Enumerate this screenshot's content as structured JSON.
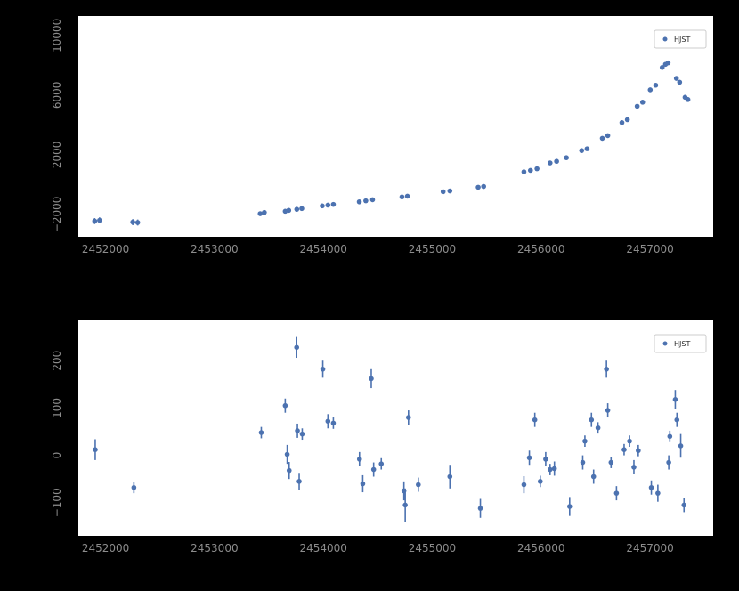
{
  "style": {
    "background": "#000000",
    "plot_bg": "#ffffff",
    "tick_color": "#8c8c8c",
    "point_color": "#4c72b0",
    "legend_border": "#cccccc",
    "legend_text_color": "#262626",
    "legend_fill": "#ffffff"
  },
  "chart_data": [
    {
      "type": "scatter",
      "name": "o-minus-c-curve",
      "title": "",
      "xlabel": "",
      "ylabel": "",
      "grid": false,
      "xlim": [
        2451750,
        2457580
      ],
      "ylim": [
        -3500,
        11300
      ],
      "xticks": [
        2452000,
        2453000,
        2454000,
        2455000,
        2456000,
        2457000
      ],
      "yticks": [
        -2000,
        2000,
        6000,
        10000
      ],
      "legend": {
        "label": "HJST",
        "position": "upper right"
      },
      "series": [
        {
          "name": "HJST",
          "color": "#4c72b0",
          "marker": "circle",
          "points": [
            [
              2451900,
              -2450,
              200
            ],
            [
              2451945,
              -2400,
              200
            ],
            [
              2452250,
              -2520,
              200
            ],
            [
              2452295,
              -2545,
              200
            ],
            [
              2453420,
              -1950,
              150
            ],
            [
              2453458,
              -1870,
              150
            ],
            [
              2453650,
              -1790,
              120
            ],
            [
              2453682,
              -1730,
              120
            ],
            [
              2453756,
              -1660,
              120
            ],
            [
              2453802,
              -1610,
              120
            ],
            [
              2453990,
              -1430,
              120
            ],
            [
              2454042,
              -1380,
              120
            ],
            [
              2454092,
              -1330,
              120
            ],
            [
              2454330,
              -1160,
              120
            ],
            [
              2454390,
              -1090,
              120
            ],
            [
              2454452,
              -1020,
              120
            ],
            [
              2454722,
              -830,
              120
            ],
            [
              2454772,
              -780,
              120
            ],
            [
              2455100,
              -480,
              120
            ],
            [
              2455162,
              -430,
              120
            ],
            [
              2455422,
              -180,
              120
            ],
            [
              2455472,
              -130,
              120
            ],
            [
              2455842,
              850,
              120
            ],
            [
              2455902,
              950,
              120
            ],
            [
              2455962,
              1060,
              120
            ],
            [
              2456082,
              1450,
              120
            ],
            [
              2456142,
              1560,
              120
            ],
            [
              2456232,
              1800,
              120
            ],
            [
              2456372,
              2280,
              120
            ],
            [
              2456422,
              2400,
              120
            ],
            [
              2456562,
              3100,
              120
            ],
            [
              2456612,
              3280,
              120
            ],
            [
              2456742,
              4150,
              130
            ],
            [
              2456792,
              4350,
              130
            ],
            [
              2456882,
              5250,
              130
            ],
            [
              2456932,
              5520,
              130
            ],
            [
              2457002,
              6350,
              140
            ],
            [
              2457052,
              6660,
              140
            ],
            [
              2457112,
              7850,
              150
            ],
            [
              2457142,
              8060,
              150
            ],
            [
              2457166,
              8160,
              150
            ],
            [
              2457242,
              7120,
              150
            ],
            [
              2457272,
              6860,
              150
            ],
            [
              2457322,
              5850,
              160
            ],
            [
              2457348,
              5700,
              160
            ]
          ]
        }
      ]
    },
    {
      "type": "scatter",
      "name": "residuals",
      "title": "",
      "xlabel": "",
      "ylabel": "",
      "grid": false,
      "xlim": [
        2451750,
        2457580
      ],
      "ylim": [
        -170,
        285
      ],
      "xticks": [
        2452000,
        2453000,
        2454000,
        2455000,
        2456000,
        2457000
      ],
      "yticks": [
        -100,
        0,
        100,
        200
      ],
      "legend": {
        "label": "HJST",
        "position": "upper right"
      },
      "series": [
        {
          "name": "HJST",
          "color": "#4c72b0",
          "marker": "circle",
          "points": [
            [
              2451905,
              12,
              22
            ],
            [
              2452260,
              -68,
              12
            ],
            [
              2453430,
              48,
              12
            ],
            [
              2453650,
              105,
              15
            ],
            [
              2453668,
              2,
              20
            ],
            [
              2453686,
              -32,
              18
            ],
            [
              2453755,
              228,
              22
            ],
            [
              2453762,
              52,
              15
            ],
            [
              2453778,
              -55,
              18
            ],
            [
              2453806,
              45,
              12
            ],
            [
              2453995,
              182,
              18
            ],
            [
              2454042,
              72,
              15
            ],
            [
              2454092,
              68,
              12
            ],
            [
              2454332,
              -8,
              15
            ],
            [
              2454362,
              -60,
              18
            ],
            [
              2454440,
              162,
              20
            ],
            [
              2454462,
              -30,
              15
            ],
            [
              2454532,
              -18,
              12
            ],
            [
              2454740,
              -75,
              20
            ],
            [
              2454752,
              -105,
              35
            ],
            [
              2454782,
              80,
              15
            ],
            [
              2454872,
              -62,
              15
            ],
            [
              2455162,
              -45,
              25
            ],
            [
              2455442,
              -112,
              20
            ],
            [
              2455842,
              -62,
              18
            ],
            [
              2455892,
              -5,
              15
            ],
            [
              2455942,
              75,
              15
            ],
            [
              2455992,
              -55,
              12
            ],
            [
              2456042,
              -8,
              15
            ],
            [
              2456082,
              -30,
              12
            ],
            [
              2456122,
              -28,
              15
            ],
            [
              2456262,
              -108,
              20
            ],
            [
              2456382,
              -15,
              15
            ],
            [
              2456402,
              30,
              12
            ],
            [
              2456462,
              75,
              15
            ],
            [
              2456482,
              -45,
              15
            ],
            [
              2456522,
              58,
              12
            ],
            [
              2456600,
              182,
              18
            ],
            [
              2456612,
              95,
              15
            ],
            [
              2456642,
              -15,
              12
            ],
            [
              2456692,
              -80,
              15
            ],
            [
              2456762,
              12,
              12
            ],
            [
              2456812,
              30,
              12
            ],
            [
              2456852,
              -25,
              15
            ],
            [
              2456892,
              10,
              12
            ],
            [
              2457012,
              -68,
              15
            ],
            [
              2457072,
              -80,
              18
            ],
            [
              2457172,
              -15,
              15
            ],
            [
              2457182,
              40,
              12
            ],
            [
              2457232,
              118,
              20
            ],
            [
              2457247,
              75,
              15
            ],
            [
              2457282,
              20,
              25
            ],
            [
              2457312,
              -105,
              15
            ]
          ]
        }
      ]
    }
  ]
}
